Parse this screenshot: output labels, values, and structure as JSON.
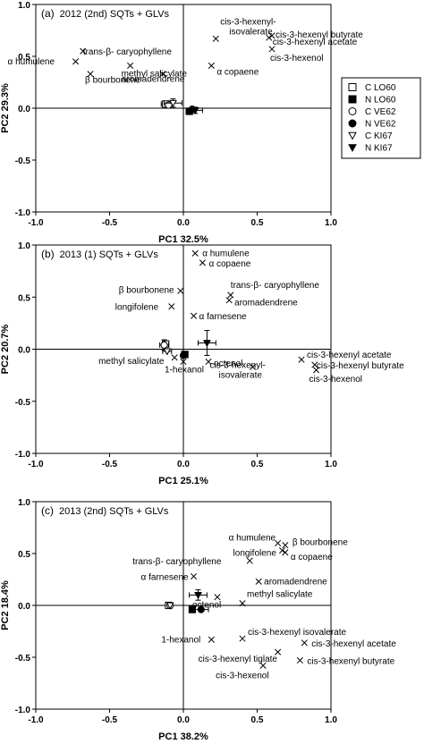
{
  "legend": [
    {
      "label": "C LO60",
      "marker": "square-open"
    },
    {
      "label": "N LO60",
      "marker": "square-filled"
    },
    {
      "label": "C VE62",
      "marker": "circle-open"
    },
    {
      "label": "N VE62",
      "marker": "circle-filled"
    },
    {
      "label": "C KI67",
      "marker": "triangle-open"
    },
    {
      "label": "N KI67",
      "marker": "triangle-filled"
    }
  ],
  "chart_data": [
    {
      "type": "scatter",
      "panel": "(a)",
      "title": "2012 (2nd) SQTs + GLVs",
      "xlabel": "PC1 32.5%",
      "ylabel": "PC2 29.3%",
      "xlim": [
        -1.0,
        1.0
      ],
      "ylim": [
        -1.0,
        1.0
      ],
      "xticks": [
        "-1.0",
        "-0.5",
        "0.0",
        "0.5",
        "1.0"
      ],
      "yticks": [
        "-1.0",
        "-0.5",
        "0.0",
        "0.5",
        "1.0"
      ],
      "loadings": [
        {
          "name": "cis-3-hexenyl-",
          "name2": "isovalerate",
          "x": 0.22,
          "y": 0.67
        },
        {
          "name": "cis-3-hexenyl butyrate",
          "x": 0.6,
          "y": 0.7
        },
        {
          "name": "cis-3-hexenyl acetate",
          "x": 0.58,
          "y": 0.68
        },
        {
          "name": "cis-3-hexenol",
          "x": 0.6,
          "y": 0.57
        },
        {
          "name": "trans-β- caryophyllene",
          "x": -0.68,
          "y": 0.55
        },
        {
          "name": "α humulene",
          "x": -0.73,
          "y": 0.45
        },
        {
          "name": "β bourbonene",
          "x": -0.63,
          "y": 0.33
        },
        {
          "name": "methyl salicylate",
          "x": -0.36,
          "y": 0.41
        },
        {
          "name": "α copaene",
          "x": 0.19,
          "y": 0.41
        },
        {
          "name": "aromadendrene",
          "x": -0.14,
          "y": 0.33
        }
      ],
      "scores": [
        {
          "series": "C LO60",
          "x": -0.12,
          "y": 0.04,
          "xerr": 0.03
        },
        {
          "series": "C VE62",
          "x": -0.1,
          "y": 0.03
        },
        {
          "series": "C KI67",
          "x": -0.07,
          "y": 0.05,
          "xerr": 0.06,
          "yerr": 0.04
        },
        {
          "series": "N LO60",
          "x": 0.04,
          "y": -0.03
        },
        {
          "series": "N VE62",
          "x": 0.06,
          "y": -0.01
        },
        {
          "series": "N KI67",
          "x": 0.08,
          "y": -0.02,
          "xerr": 0.05,
          "yerr": 0.03
        }
      ]
    },
    {
      "type": "scatter",
      "panel": "(b)",
      "title": "2013 (1) SQTs + GLVs",
      "xlabel": "PC1 25.1%",
      "ylabel": "PC2 20.7%",
      "xlim": [
        -1.0,
        1.0
      ],
      "ylim": [
        -1.0,
        1.0
      ],
      "xticks": [
        "-1.0",
        "-0.5",
        "0.0",
        "0.5",
        "1.0"
      ],
      "yticks": [
        "-1.0",
        "-0.5",
        "0.0",
        "0.5",
        "1.0"
      ],
      "loadings": [
        {
          "name": "α humulene",
          "x": 0.08,
          "y": 0.92
        },
        {
          "name": "α copaene",
          "x": 0.13,
          "y": 0.83
        },
        {
          "name": "β bourbonene",
          "x": -0.02,
          "y": 0.56
        },
        {
          "name": "trans-β- caryophyllene",
          "x": 0.32,
          "y": 0.52
        },
        {
          "name": "aromadendrene",
          "x": 0.31,
          "y": 0.47
        },
        {
          "name": "longifolene",
          "x": -0.08,
          "y": 0.41
        },
        {
          "name": "α farnesene",
          "x": 0.07,
          "y": 0.32
        },
        {
          "name": "methyl salicylate",
          "x": -0.06,
          "y": -0.08
        },
        {
          "name": "1-hexanol",
          "x": 0.0,
          "y": -0.12
        },
        {
          "name": "octenol",
          "x": 0.17,
          "y": -0.12
        },
        {
          "name": "cis-3-hexenyl-",
          "name2": "isovalerate",
          "x": 0.47,
          "y": -0.17
        },
        {
          "name": "cis-3-hexenyl acetate",
          "x": 0.8,
          "y": -0.1
        },
        {
          "name": "cis-3-hexenyl butyrate",
          "x": 0.89,
          "y": -0.15
        },
        {
          "name": "cis-3-hexenol",
          "x": 0.9,
          "y": -0.2
        }
      ],
      "scores": [
        {
          "series": "C LO60",
          "x": -0.12,
          "y": 0.05
        },
        {
          "series": "C VE62",
          "x": -0.13,
          "y": 0.04,
          "xerr": 0.03,
          "yerr": 0.05
        },
        {
          "series": "C KI67",
          "x": -0.11,
          "y": -0.02,
          "xerr": 0.03
        },
        {
          "series": "N LO60",
          "x": 0.01,
          "y": -0.05
        },
        {
          "series": "N VE62",
          "x": 0.0,
          "y": -0.06
        },
        {
          "series": "N KI67",
          "x": 0.16,
          "y": 0.06,
          "xerr": 0.06,
          "yerr": 0.12
        }
      ]
    },
    {
      "type": "scatter",
      "panel": "(c)",
      "title": "2013 (2nd) SQTs + GLVs",
      "xlabel": "PC1 38.2%",
      "ylabel": "PC2 18.4%",
      "xlim": [
        -1.0,
        1.0
      ],
      "ylim": [
        -1.0,
        1.0
      ],
      "xticks": [
        "-1.0",
        "-0.5",
        "0.0",
        "0.5",
        "1.0"
      ],
      "yticks": [
        "-1.0",
        "-0.5",
        "0.0",
        "0.5",
        "1.0"
      ],
      "loadings": [
        {
          "name": "α humulene",
          "x": 0.64,
          "y": 0.6
        },
        {
          "name": "β bourbonene",
          "x": 0.69,
          "y": 0.58
        },
        {
          "name": "longifolene",
          "x": 0.67,
          "y": 0.53
        },
        {
          "name": "α copaene",
          "x": 0.69,
          "y": 0.51
        },
        {
          "name": "trans-β- caryophyllene",
          "x": 0.45,
          "y": 0.43
        },
        {
          "name": "α farnesene",
          "x": 0.07,
          "y": 0.28
        },
        {
          "name": "aromadendrene",
          "x": 0.51,
          "y": 0.23
        },
        {
          "name": "octenol",
          "x": 0.23,
          "y": 0.08
        },
        {
          "name": "methyl salicylate",
          "x": 0.4,
          "y": 0.02
        },
        {
          "name": "1-hexanol",
          "x": 0.19,
          "y": -0.33
        },
        {
          "name": "cis-3-hexenyl isovalerate",
          "x": 0.4,
          "y": -0.32
        },
        {
          "name": "cis-3-hexenyl acetate",
          "x": 0.82,
          "y": -0.36
        },
        {
          "name": "cis-3-hexenyl tiglate",
          "x": 0.64,
          "y": -0.45
        },
        {
          "name": "cis-3-hexenyl butyrate",
          "x": 0.79,
          "y": -0.53
        },
        {
          "name": "cis-3-hexenol",
          "x": 0.54,
          "y": -0.58
        }
      ],
      "scores": [
        {
          "series": "C LO60",
          "x": -0.1,
          "y": 0.0
        },
        {
          "series": "C VE62",
          "x": -0.09,
          "y": 0.0
        },
        {
          "series": "C KI67",
          "x": -0.09,
          "y": 0.0
        },
        {
          "series": "N LO60",
          "x": 0.06,
          "y": -0.04
        },
        {
          "series": "N VE62",
          "x": 0.12,
          "y": -0.04,
          "xerr": 0.05
        },
        {
          "series": "N KI67",
          "x": 0.1,
          "y": 0.1,
          "xerr": 0.06,
          "yerr": 0.05
        }
      ]
    }
  ]
}
